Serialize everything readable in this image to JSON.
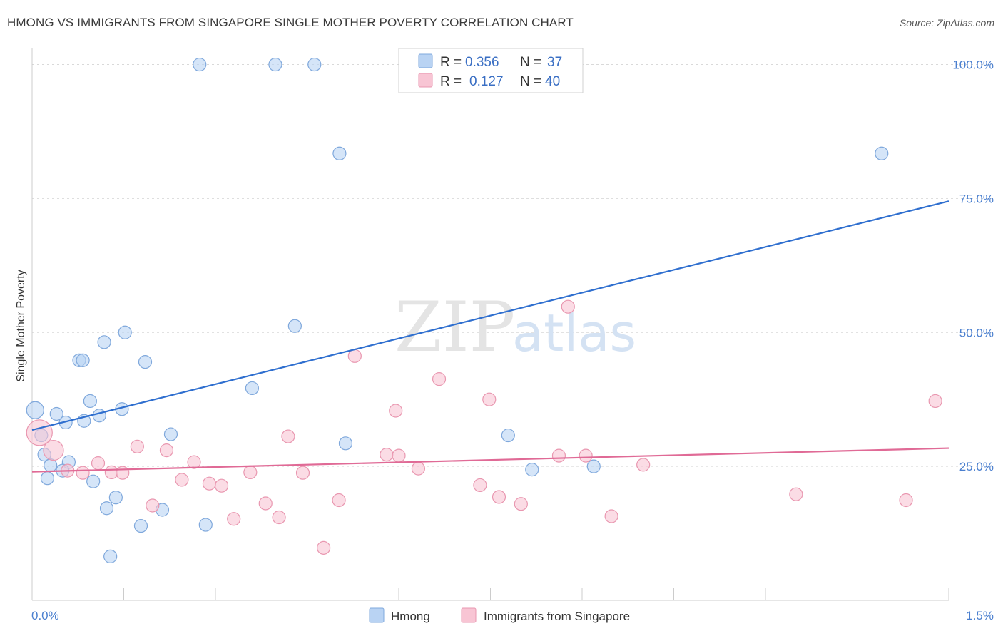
{
  "title": "HMONG VS IMMIGRANTS FROM SINGAPORE SINGLE MOTHER POVERTY CORRELATION CHART",
  "source": "Source: ZipAtlas.com",
  "watermark": {
    "zip": "ZIP",
    "atlas": "atlas"
  },
  "legend_top": {
    "rows": [
      {
        "r_label": "R = ",
        "r_value": "0.356",
        "n_label": "N = ",
        "n_value": "37"
      },
      {
        "r_label": "R = ",
        "r_value": "0.127",
        "n_label": "N = ",
        "n_value": "40"
      }
    ]
  },
  "colors": {
    "hmong_fill": "#b9d3f3",
    "hmong_stroke": "#7fa8dc",
    "hmong_line": "#2f6fcf",
    "sing_fill": "#f8c5d4",
    "sing_stroke": "#e997b0",
    "sing_line": "#e06a96",
    "grid": "#d9d9d9",
    "axis": "#cccccc"
  },
  "chart_data": {
    "type": "scatter",
    "title": "HMONG VS IMMIGRANTS FROM SINGAPORE SINGLE MOTHER POVERTY CORRELATION CHART",
    "xlabel": "",
    "ylabel": "Single Mother Poverty",
    "xlim": [
      0,
      1.5
    ],
    "ylim": [
      0,
      103
    ],
    "x_tick_labels": [
      {
        "value": 0,
        "label": "0.0%"
      },
      {
        "value": 1.5,
        "label": "1.5%"
      }
    ],
    "y_tick_labels": [
      {
        "value": 25,
        "label": "25.0%"
      },
      {
        "value": 50,
        "label": "50.0%"
      },
      {
        "value": 75,
        "label": "75.0%"
      },
      {
        "value": 100,
        "label": "100.0%"
      }
    ],
    "grid": true,
    "legend_position": "top-center",
    "series": [
      {
        "name": "Hmong",
        "color": "#7fa8dc",
        "trend": {
          "x": [
            0,
            1.5
          ],
          "y": [
            31.8,
            74.5
          ]
        },
        "points": [
          {
            "x": 0.005,
            "y": 35.5,
            "s": 12
          },
          {
            "x": 0.015,
            "y": 30.8,
            "s": 9
          },
          {
            "x": 0.02,
            "y": 27.2,
            "s": 9
          },
          {
            "x": 0.025,
            "y": 22.8,
            "s": 9
          },
          {
            "x": 0.03,
            "y": 25.2,
            "s": 9
          },
          {
            "x": 0.04,
            "y": 34.8,
            "s": 9
          },
          {
            "x": 0.055,
            "y": 33.2,
            "s": 9
          },
          {
            "x": 0.06,
            "y": 25.8,
            "s": 9
          },
          {
            "x": 0.05,
            "y": 24.2,
            "s": 9
          },
          {
            "x": 0.077,
            "y": 44.8,
            "s": 9
          },
          {
            "x": 0.083,
            "y": 44.8,
            "s": 9
          },
          {
            "x": 0.085,
            "y": 33.5,
            "s": 9
          },
          {
            "x": 0.095,
            "y": 37.2,
            "s": 9
          },
          {
            "x": 0.1,
            "y": 22.2,
            "s": 9
          },
          {
            "x": 0.11,
            "y": 34.5,
            "s": 9
          },
          {
            "x": 0.118,
            "y": 48.2,
            "s": 9
          },
          {
            "x": 0.122,
            "y": 17.2,
            "s": 9
          },
          {
            "x": 0.128,
            "y": 8.2,
            "s": 9
          },
          {
            "x": 0.137,
            "y": 19.2,
            "s": 9
          },
          {
            "x": 0.147,
            "y": 35.7,
            "s": 9
          },
          {
            "x": 0.152,
            "y": 50.0,
            "s": 9
          },
          {
            "x": 0.178,
            "y": 13.9,
            "s": 9
          },
          {
            "x": 0.185,
            "y": 44.5,
            "s": 9
          },
          {
            "x": 0.213,
            "y": 16.9,
            "s": 9
          },
          {
            "x": 0.227,
            "y": 31.0,
            "s": 9
          },
          {
            "x": 0.274,
            "y": 100,
            "s": 9
          },
          {
            "x": 0.284,
            "y": 14.1,
            "s": 9
          },
          {
            "x": 0.36,
            "y": 39.6,
            "s": 9
          },
          {
            "x": 0.398,
            "y": 100,
            "s": 9
          },
          {
            "x": 0.43,
            "y": 51.2,
            "s": 9
          },
          {
            "x": 0.462,
            "y": 100,
            "s": 9
          },
          {
            "x": 0.503,
            "y": 83.4,
            "s": 9
          },
          {
            "x": 0.513,
            "y": 29.3,
            "s": 9
          },
          {
            "x": 0.779,
            "y": 30.8,
            "s": 9
          },
          {
            "x": 0.818,
            "y": 24.4,
            "s": 9
          },
          {
            "x": 0.919,
            "y": 25.0,
            "s": 9
          },
          {
            "x": 1.39,
            "y": 83.4,
            "s": 9
          }
        ]
      },
      {
        "name": "Immigrants from Singapore",
        "color": "#e997b0",
        "trend": {
          "x": [
            0,
            1.5
          ],
          "y": [
            24.0,
            28.4
          ]
        },
        "points": [
          {
            "x": 0.012,
            "y": 31.3,
            "s": 18
          },
          {
            "x": 0.035,
            "y": 28.0,
            "s": 14
          },
          {
            "x": 0.058,
            "y": 24.2,
            "s": 9
          },
          {
            "x": 0.083,
            "y": 23.8,
            "s": 9
          },
          {
            "x": 0.108,
            "y": 25.6,
            "s": 9
          },
          {
            "x": 0.13,
            "y": 23.9,
            "s": 9
          },
          {
            "x": 0.148,
            "y": 23.8,
            "s": 9
          },
          {
            "x": 0.172,
            "y": 28.7,
            "s": 9
          },
          {
            "x": 0.197,
            "y": 17.7,
            "s": 9
          },
          {
            "x": 0.22,
            "y": 28.0,
            "s": 9
          },
          {
            "x": 0.245,
            "y": 22.5,
            "s": 9
          },
          {
            "x": 0.265,
            "y": 25.8,
            "s": 9
          },
          {
            "x": 0.29,
            "y": 21.8,
            "s": 9
          },
          {
            "x": 0.31,
            "y": 21.4,
            "s": 9
          },
          {
            "x": 0.33,
            "y": 15.2,
            "s": 9
          },
          {
            "x": 0.357,
            "y": 23.9,
            "s": 9
          },
          {
            "x": 0.382,
            "y": 18.1,
            "s": 9
          },
          {
            "x": 0.404,
            "y": 15.5,
            "s": 9
          },
          {
            "x": 0.419,
            "y": 30.6,
            "s": 9
          },
          {
            "x": 0.443,
            "y": 23.8,
            "s": 9
          },
          {
            "x": 0.477,
            "y": 9.8,
            "s": 9
          },
          {
            "x": 0.502,
            "y": 18.7,
            "s": 9
          },
          {
            "x": 0.528,
            "y": 45.6,
            "s": 9
          },
          {
            "x": 0.58,
            "y": 27.2,
            "s": 9
          },
          {
            "x": 0.595,
            "y": 35.4,
            "s": 9
          },
          {
            "x": 0.6,
            "y": 27.0,
            "s": 9
          },
          {
            "x": 0.632,
            "y": 24.6,
            "s": 9
          },
          {
            "x": 0.666,
            "y": 41.3,
            "s": 9
          },
          {
            "x": 0.733,
            "y": 21.5,
            "s": 9
          },
          {
            "x": 0.748,
            "y": 37.5,
            "s": 9
          },
          {
            "x": 0.764,
            "y": 19.3,
            "s": 9
          },
          {
            "x": 0.8,
            "y": 18.0,
            "s": 9
          },
          {
            "x": 0.862,
            "y": 27.0,
            "s": 9
          },
          {
            "x": 0.877,
            "y": 54.8,
            "s": 9
          },
          {
            "x": 0.906,
            "y": 27.0,
            "s": 9
          },
          {
            "x": 0.948,
            "y": 15.7,
            "s": 9
          },
          {
            "x": 1.0,
            "y": 25.3,
            "s": 9
          },
          {
            "x": 1.25,
            "y": 19.8,
            "s": 9
          },
          {
            "x": 1.43,
            "y": 18.7,
            "s": 9
          },
          {
            "x": 1.478,
            "y": 37.2,
            "s": 9
          }
        ]
      }
    ]
  }
}
